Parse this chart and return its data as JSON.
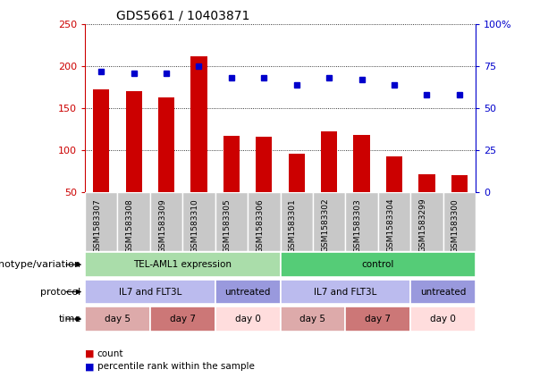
{
  "title": "GDS5661 / 10403871",
  "samples": [
    "GSM1583307",
    "GSM1583308",
    "GSM1583309",
    "GSM1583310",
    "GSM1583305",
    "GSM1583306",
    "GSM1583301",
    "GSM1583302",
    "GSM1583303",
    "GSM1583304",
    "GSM1583299",
    "GSM1583300"
  ],
  "counts": [
    172,
    170,
    163,
    212,
    117,
    116,
    96,
    123,
    118,
    93,
    72,
    70
  ],
  "percentiles": [
    72,
    71,
    71,
    75,
    68,
    68,
    64,
    68,
    67,
    64,
    58,
    58
  ],
  "ylim_left": [
    50,
    250
  ],
  "ylim_right": [
    0,
    100
  ],
  "yticks_left": [
    50,
    100,
    150,
    200,
    250
  ],
  "yticks_right": [
    0,
    25,
    50,
    75,
    100
  ],
  "ytick_labels_right": [
    "0",
    "25",
    "50",
    "75",
    "100%"
  ],
  "bar_color": "#cc0000",
  "dot_color": "#0000cc",
  "bar_width": 0.5,
  "genotype_row": [
    {
      "label": "TEL-AML1 expression",
      "start": 0,
      "end": 6,
      "color": "#aaddaa"
    },
    {
      "label": "control",
      "start": 6,
      "end": 12,
      "color": "#55cc77"
    }
  ],
  "protocol_row": [
    {
      "label": "IL7 and FLT3L",
      "start": 0,
      "end": 4,
      "color": "#bbbbee"
    },
    {
      "label": "untreated",
      "start": 4,
      "end": 6,
      "color": "#9999dd"
    },
    {
      "label": "IL7 and FLT3L",
      "start": 6,
      "end": 10,
      "color": "#bbbbee"
    },
    {
      "label": "untreated",
      "start": 10,
      "end": 12,
      "color": "#9999dd"
    }
  ],
  "time_row": [
    {
      "label": "day 5",
      "start": 0,
      "end": 2,
      "color": "#ddaaaa"
    },
    {
      "label": "day 7",
      "start": 2,
      "end": 4,
      "color": "#cc7777"
    },
    {
      "label": "day 0",
      "start": 4,
      "end": 6,
      "color": "#ffdddd"
    },
    {
      "label": "day 5",
      "start": 6,
      "end": 8,
      "color": "#ddaaaa"
    },
    {
      "label": "day 7",
      "start": 8,
      "end": 10,
      "color": "#cc7777"
    },
    {
      "label": "day 0",
      "start": 10,
      "end": 12,
      "color": "#ffdddd"
    }
  ],
  "row_labels": [
    "genotype/variation",
    "protocol",
    "time"
  ],
  "legend_items": [
    {
      "label": "count",
      "color": "#cc0000"
    },
    {
      "label": "percentile rank within the sample",
      "color": "#0000cc"
    }
  ],
  "xtick_cell_color": "#c8c8c8",
  "xtick_border_color": "#ffffff",
  "title_fontsize": 10,
  "axis_fontsize": 8,
  "label_fontsize": 8,
  "row_label_fontsize": 8
}
